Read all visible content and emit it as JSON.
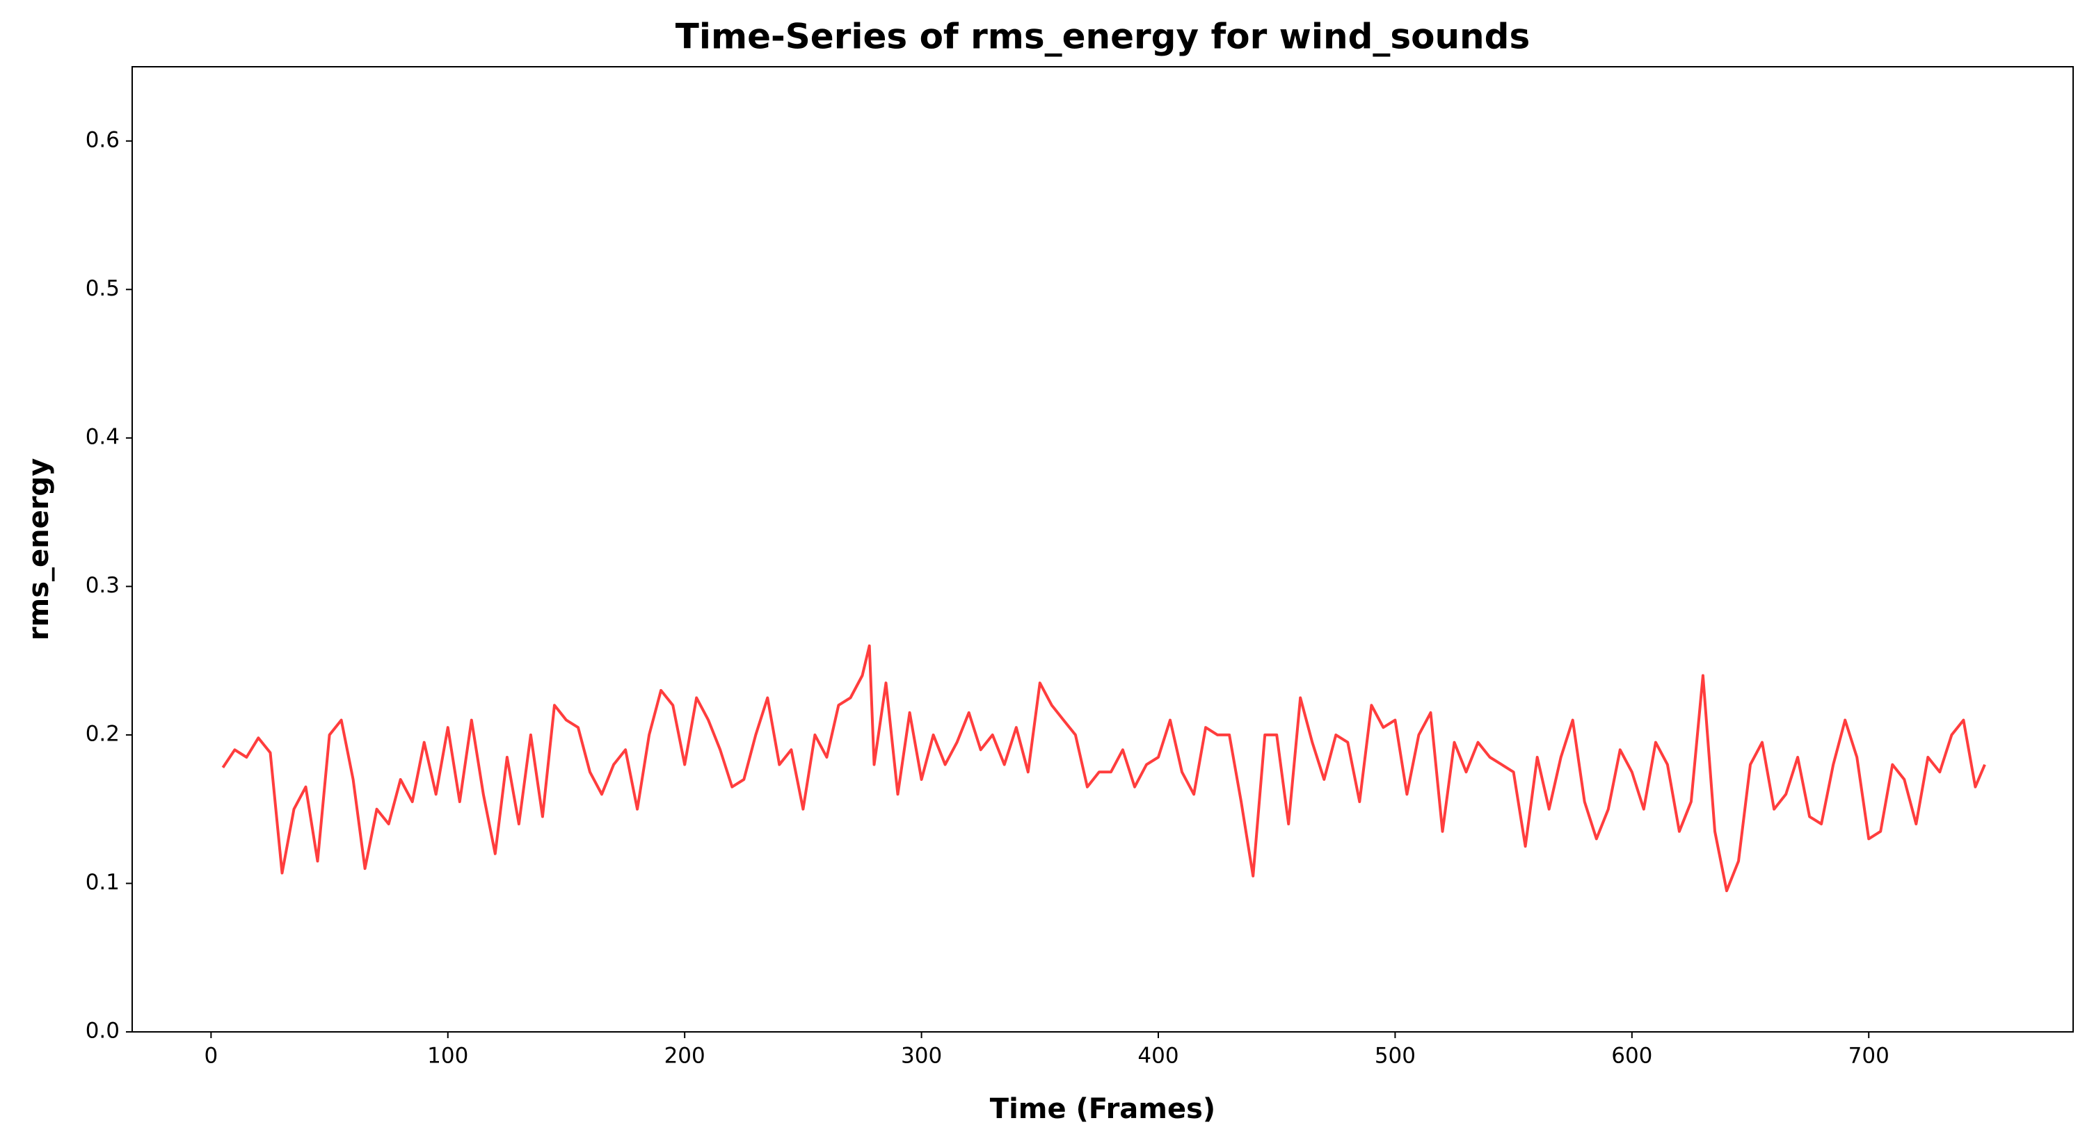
{
  "chart_data": {
    "type": "line",
    "title": "Time-Series of rms_energy for wind_sounds",
    "x_label": "Time (Frames)",
    "y_label": "rms_energy",
    "color": "#ff3333",
    "grid": false,
    "xlim": [
      -33.3,
      786.3
    ],
    "ylim": [
      0,
      0.65
    ],
    "xticks": [
      0,
      100,
      200,
      300,
      400,
      500,
      600,
      700
    ],
    "yticks": [
      {
        "value": 0,
        "label": "0.0"
      },
      0.1,
      0.2,
      0.3,
      0.4,
      0.5,
      0.6
    ],
    "x": [
      5,
      10,
      15,
      20,
      25,
      30,
      35,
      40,
      45,
      50,
      55,
      60,
      65,
      70,
      75,
      80,
      85,
      90,
      95,
      100,
      105,
      110,
      115,
      120,
      125,
      130,
      135,
      140,
      145,
      150,
      155,
      160,
      165,
      170,
      175,
      180,
      185,
      190,
      195,
      200,
      205,
      210,
      215,
      220,
      225,
      230,
      235,
      240,
      245,
      250,
      255,
      260,
      265,
      270,
      275,
      278,
      280,
      285,
      290,
      295,
      300,
      305,
      310,
      315,
      320,
      325,
      330,
      335,
      340,
      345,
      350,
      355,
      360,
      365,
      370,
      375,
      380,
      385,
      390,
      395,
      400,
      405,
      410,
      415,
      420,
      425,
      430,
      435,
      440,
      445,
      450,
      455,
      460,
      465,
      470,
      475,
      480,
      485,
      490,
      495,
      500,
      505,
      510,
      515,
      520,
      525,
      530,
      535,
      540,
      545,
      550,
      555,
      560,
      565,
      570,
      575,
      580,
      585,
      590,
      595,
      600,
      605,
      610,
      615,
      620,
      625,
      630,
      635,
      640,
      645,
      650,
      655,
      660,
      665,
      670,
      675,
      680,
      685,
      690,
      695,
      700,
      705,
      710,
      715,
      720,
      725,
      730,
      735,
      740,
      745,
      749
    ],
    "values": [
      0.178,
      0.19,
      0.185,
      0.198,
      0.188,
      0.107,
      0.15,
      0.165,
      0.115,
      0.2,
      0.21,
      0.17,
      0.11,
      0.15,
      0.14,
      0.17,
      0.155,
      0.195,
      0.16,
      0.205,
      0.155,
      0.21,
      0.16,
      0.12,
      0.185,
      0.14,
      0.2,
      0.145,
      0.22,
      0.21,
      0.205,
      0.175,
      0.16,
      0.18,
      0.19,
      0.15,
      0.2,
      0.23,
      0.22,
      0.18,
      0.225,
      0.21,
      0.19,
      0.165,
      0.17,
      0.2,
      0.225,
      0.18,
      0.19,
      0.15,
      0.2,
      0.185,
      0.22,
      0.225,
      0.24,
      0.26,
      0.18,
      0.235,
      0.16,
      0.215,
      0.17,
      0.2,
      0.18,
      0.195,
      0.215,
      0.19,
      0.2,
      0.18,
      0.205,
      0.175,
      0.235,
      0.22,
      0.21,
      0.2,
      0.165,
      0.175,
      0.175,
      0.19,
      0.165,
      0.18,
      0.185,
      0.21,
      0.175,
      0.16,
      0.205,
      0.2,
      0.2,
      0.155,
      0.105,
      0.2,
      0.2,
      0.14,
      0.225,
      0.195,
      0.17,
      0.2,
      0.195,
      0.155,
      0.22,
      0.205,
      0.21,
      0.16,
      0.2,
      0.215,
      0.135,
      0.195,
      0.175,
      0.195,
      0.185,
      0.18,
      0.175,
      0.125,
      0.185,
      0.15,
      0.185,
      0.21,
      0.155,
      0.13,
      0.15,
      0.19,
      0.175,
      0.15,
      0.195,
      0.18,
      0.135,
      0.155,
      0.24,
      0.135,
      0.095,
      0.115,
      0.18,
      0.195,
      0.15,
      0.16,
      0.185,
      0.145,
      0.14,
      0.18,
      0.21,
      0.185,
      0.13,
      0.135,
      0.18,
      0.17,
      0.14,
      0.185,
      0.175,
      0.2,
      0.21,
      0.165,
      0.18
    ]
  }
}
